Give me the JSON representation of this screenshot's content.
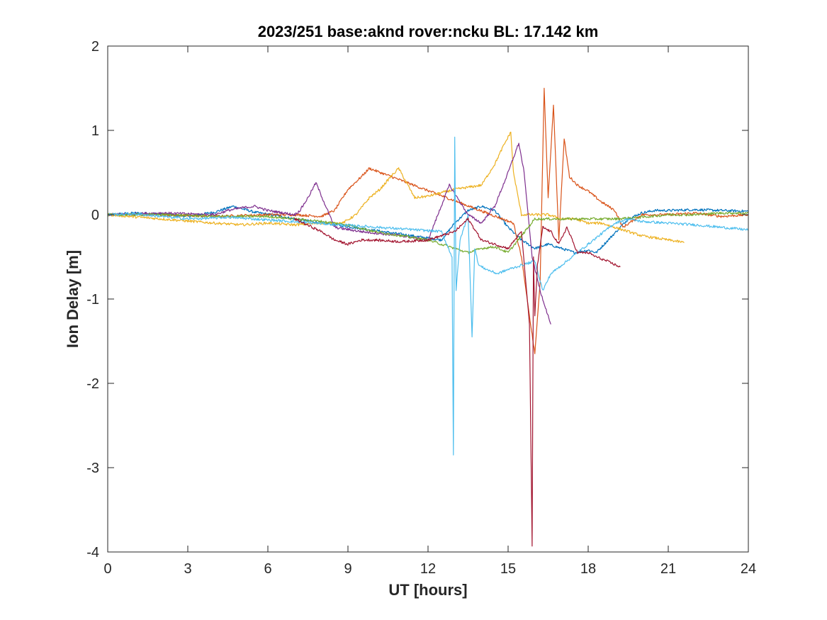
{
  "chart_data": {
    "type": "line",
    "title": "2023/251 base:aknd rover:ncku BL: 17.142 km",
    "xlabel": "UT [hours]",
    "ylabel": "Ion Delay [m]",
    "xlim": [
      0,
      24
    ],
    "ylim": [
      -4,
      2
    ],
    "xticks": [
      0,
      3,
      6,
      9,
      12,
      15,
      18,
      21,
      24
    ],
    "xtick_labels": [
      "0",
      "3",
      "6",
      "9",
      "12",
      "15",
      "18",
      "21",
      "24"
    ],
    "yticks": [
      2,
      1,
      0,
      -1,
      -2,
      -3,
      -4
    ],
    "ytick_labels": [
      "2",
      "1",
      "0",
      "-1",
      "-2",
      "-3",
      "-4"
    ],
    "grid": false,
    "legend": "none",
    "series": [
      {
        "color": "#0072BD",
        "x": [
          0,
          1,
          2,
          3,
          4,
          4.7,
          5.5,
          6.5,
          7,
          12.5,
          13,
          13.5,
          14,
          14.5,
          15,
          15.5,
          16,
          16.5,
          17,
          17.5,
          18,
          18.3,
          19.5,
          20,
          20.5,
          21,
          22,
          23,
          24
        ],
        "y": [
          0,
          0.02,
          0.01,
          -0.02,
          0.03,
          0.1,
          0.03,
          -0.02,
          -0.05,
          -0.3,
          -0.1,
          0.05,
          0.1,
          0.05,
          -0.15,
          -0.3,
          -0.4,
          -0.35,
          -0.4,
          -0.45,
          -0.42,
          -0.45,
          -0.05,
          0.02,
          0.05,
          0.05,
          0.06,
          0.05,
          0.04
        ]
      },
      {
        "color": "#D95319",
        "x": [
          0,
          2,
          4,
          6,
          7,
          8,
          8.5,
          9,
          9.5,
          9.8,
          15.2,
          15.5,
          15.8,
          16.0,
          16.2,
          16.35,
          16.5,
          16.7,
          16.9,
          17.1,
          17.3,
          17.6,
          18,
          18.5,
          19,
          19.3,
          20,
          21,
          22,
          23,
          24
        ],
        "y": [
          0,
          0,
          -0.02,
          0,
          0,
          -0.02,
          0.05,
          0.3,
          0.45,
          0.55,
          -0.1,
          -0.5,
          -1.2,
          -1.65,
          -0.8,
          1.5,
          0.2,
          1.3,
          -0.3,
          0.9,
          0.45,
          0.35,
          0.28,
          0.15,
          0.05,
          -0.15,
          0.0,
          0.0,
          0.02,
          -0.02,
          0
        ]
      },
      {
        "color": "#EDB120",
        "x": [
          0,
          2,
          4,
          5,
          6,
          7,
          8,
          8.8,
          9.3,
          9.8,
          10.2,
          10.6,
          10.9,
          11.5,
          12,
          13,
          14,
          14.5,
          14.8,
          15.1,
          15.2,
          15.5,
          16.5,
          17,
          17.5,
          18,
          18.5,
          19,
          19.5,
          20,
          21,
          21.6
        ],
        "y": [
          0,
          -0.05,
          -0.1,
          -0.12,
          -0.1,
          -0.12,
          -0.1,
          -0.1,
          0.0,
          0.2,
          0.3,
          0.45,
          0.55,
          0.2,
          0.22,
          0.3,
          0.35,
          0.6,
          0.8,
          0.98,
          0.5,
          0.0,
          0.0,
          -0.05,
          -0.05,
          -0.1,
          -0.1,
          -0.15,
          -0.2,
          -0.25,
          -0.3,
          -0.33
        ]
      },
      {
        "color": "#7E2F8E",
        "x": [
          0,
          2,
          4,
          4.5,
          5,
          5.5,
          6,
          7,
          7.2,
          7.5,
          7.8,
          8.5,
          9.5,
          11,
          12,
          12.8,
          13,
          13.5,
          14,
          14.5,
          15,
          15.4,
          15.6,
          15.9,
          16.2,
          16.6
        ],
        "y": [
          0,
          0.02,
          0.0,
          0.05,
          0.08,
          0.1,
          0.05,
          0.0,
          0.05,
          0.2,
          0.38,
          -0.15,
          -0.2,
          -0.25,
          -0.3,
          0.35,
          0.25,
          0.0,
          -0.1,
          0.1,
          0.5,
          0.85,
          0.5,
          -0.5,
          -0.9,
          -1.3
        ]
      },
      {
        "color": "#77AC30",
        "x": [
          0,
          2,
          4,
          6,
          7,
          8,
          9,
          10,
          11,
          12,
          12.5,
          13,
          13.5,
          14,
          14.5,
          15,
          16,
          17,
          18,
          19,
          20,
          21,
          22,
          23,
          24
        ],
        "y": [
          0,
          0,
          -0.02,
          -0.02,
          -0.05,
          -0.08,
          -0.12,
          -0.2,
          -0.25,
          -0.3,
          -0.35,
          -0.4,
          -0.45,
          -0.4,
          -0.38,
          -0.45,
          -0.05,
          -0.05,
          -0.05,
          -0.05,
          -0.03,
          0,
          0,
          0.02,
          0.02
        ]
      },
      {
        "color": "#4DBEEE",
        "x": [
          0,
          1,
          2,
          3,
          4,
          4.5,
          12.5,
          12.9,
          12.95,
          13.0,
          13.05,
          13.2,
          13.5,
          13.65,
          13.75,
          13.9,
          14.2,
          14.6,
          15,
          15.5,
          16,
          16.3,
          16.6,
          17,
          18,
          19,
          19.5,
          20,
          21,
          22,
          23,
          24
        ],
        "y": [
          0,
          0.01,
          -0.02,
          -0.05,
          -0.04,
          -0.03,
          -0.2,
          -0.5,
          -2.85,
          0.92,
          -0.9,
          -0.3,
          0.0,
          -1.45,
          -0.4,
          -0.6,
          -0.65,
          -0.7,
          -0.65,
          -0.6,
          -0.55,
          -0.9,
          -0.7,
          -0.6,
          -0.35,
          -0.1,
          -0.05,
          -0.08,
          -0.1,
          -0.12,
          -0.15,
          -0.18
        ]
      },
      {
        "color": "#A2142F",
        "x": [
          7,
          8,
          8.5,
          9,
          9.5,
          10,
          11,
          12,
          12.5,
          13,
          13.5,
          14,
          15,
          15.5,
          15.8,
          15.9,
          15.95,
          16.0,
          16.1,
          16.3,
          16.6,
          16.9,
          17.2,
          17.6,
          18,
          18.3,
          18.7,
          19.2
        ],
        "y": [
          -0.05,
          -0.2,
          -0.3,
          -0.35,
          -0.3,
          -0.3,
          -0.32,
          -0.3,
          -0.25,
          -0.2,
          -0.05,
          -0.3,
          -0.4,
          -0.2,
          -1.3,
          -3.93,
          -0.5,
          -1.2,
          -0.6,
          -0.15,
          -0.2,
          -0.35,
          -0.15,
          -0.45,
          -0.45,
          -0.5,
          -0.55,
          -0.62
        ]
      }
    ]
  }
}
